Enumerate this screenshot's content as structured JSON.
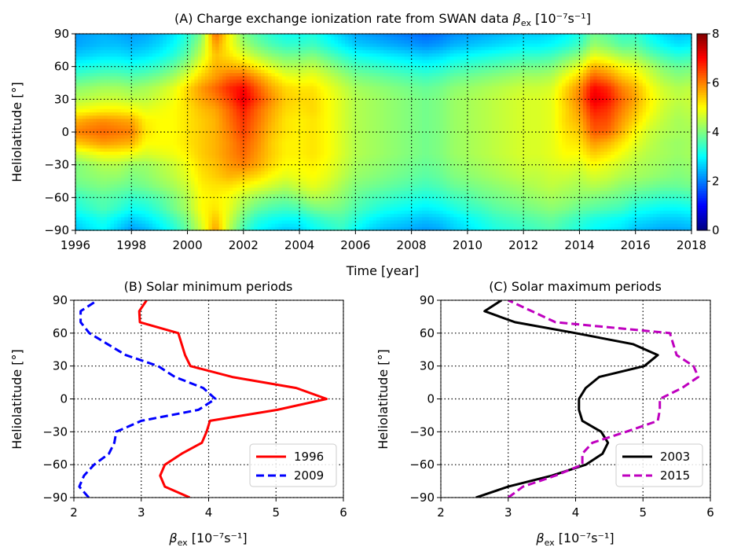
{
  "chart_data": [
    {
      "panel": "A",
      "type": "heatmap",
      "title": "(A) Charge exchange ionization rate from SWAN data",
      "title_symbol": "β",
      "title_symbol_sub": "ex",
      "title_unit": "[10⁻⁷s⁻¹]",
      "xlabel": "Time [year]",
      "ylabel": "Heliolatitude [°]",
      "xlim": [
        1996,
        2018
      ],
      "ylim": [
        -90,
        90
      ],
      "xticks": [
        "1996",
        "1998",
        "2000",
        "2002",
        "2004",
        "2006",
        "2008",
        "2010",
        "2012",
        "2014",
        "2016",
        "2018"
      ],
      "yticks": [
        "−90",
        "−60",
        "−30",
        "0",
        "30",
        "60",
        "90"
      ],
      "colorbar": {
        "min": 0,
        "max": 8,
        "ticks": [
          "0",
          "2",
          "4",
          "6",
          "8"
        ],
        "colormap": "jet"
      },
      "grid": true,
      "latitudes": [
        -90,
        -80,
        -70,
        -60,
        -50,
        -40,
        -30,
        -20,
        -10,
        0,
        10,
        20,
        30,
        40,
        50,
        60,
        70,
        80,
        90
      ],
      "years": [
        1996.0,
        1996.5,
        1997.0,
        1997.5,
        1998.0,
        1998.5,
        1999.0,
        1999.5,
        2000.0,
        2000.5,
        2001.0,
        2001.5,
        2002.0,
        2002.5,
        2003.0,
        2003.5,
        2004.0,
        2004.5,
        2005.0,
        2005.5,
        2006.0,
        2006.5,
        2007.0,
        2007.5,
        2008.0,
        2008.5,
        2009.0,
        2009.5,
        2010.0,
        2010.5,
        2011.0,
        2011.5,
        2012.0,
        2012.5,
        2013.0,
        2013.5,
        2014.0,
        2014.5,
        2015.0,
        2015.5,
        2016.0,
        2016.5,
        2017.0,
        2017.5,
        2018.0
      ],
      "values_by_latitude": [
        [
          2.5,
          2.8,
          3.0,
          2.6,
          2.2,
          2.4,
          2.8,
          3.2,
          3.8,
          4.6,
          5.8,
          4.4,
          3.5,
          3.0,
          2.8,
          2.6,
          2.7,
          3.0,
          3.2,
          3.4,
          3.0,
          2.7,
          2.5,
          2.4,
          2.3,
          2.2,
          2.3,
          2.6,
          2.8,
          3.0,
          3.2,
          3.3,
          3.4,
          3.5,
          3.6,
          3.4,
          3.2,
          3.0,
          2.9,
          2.8,
          2.5,
          2.4,
          2.3,
          2.3,
          2.4
        ],
        [
          2.8,
          3.0,
          3.2,
          2.9,
          2.6,
          2.8,
          3.1,
          3.5,
          4.0,
          4.8,
          5.5,
          4.6,
          3.8,
          3.3,
          3.1,
          3.0,
          3.0,
          3.3,
          3.5,
          3.6,
          3.3,
          3.0,
          2.8,
          2.7,
          2.6,
          2.5,
          2.6,
          2.8,
          3.0,
          3.2,
          3.4,
          3.5,
          3.6,
          3.7,
          3.8,
          3.6,
          3.4,
          3.2,
          3.1,
          3.0,
          2.8,
          2.7,
          2.6,
          2.6,
          2.7
        ],
        [
          3.2,
          3.4,
          3.6,
          3.4,
          3.1,
          3.2,
          3.5,
          3.9,
          4.3,
          5.0,
          5.2,
          4.8,
          4.2,
          3.8,
          3.6,
          3.5,
          3.6,
          3.9,
          4.0,
          3.9,
          3.6,
          3.4,
          3.2,
          3.1,
          3.0,
          2.9,
          3.0,
          3.2,
          3.4,
          3.5,
          3.7,
          3.8,
          3.9,
          4.0,
          4.1,
          4.0,
          3.8,
          3.7,
          3.6,
          3.5,
          3.2,
          3.1,
          3.0,
          3.0,
          3.1
        ],
        [
          3.4,
          3.6,
          3.7,
          3.6,
          3.4,
          3.5,
          3.7,
          4.0,
          4.4,
          5.0,
          5.1,
          4.9,
          4.5,
          4.2,
          4.0,
          3.9,
          4.1,
          4.4,
          4.3,
          4.1,
          3.8,
          3.6,
          3.5,
          3.4,
          3.3,
          3.2,
          3.3,
          3.5,
          3.6,
          3.8,
          3.9,
          4.0,
          4.1,
          4.2,
          4.3,
          4.2,
          4.1,
          4.0,
          3.9,
          3.8,
          3.6,
          3.5,
          3.4,
          3.4,
          3.5
        ],
        [
          3.8,
          3.9,
          4.0,
          3.9,
          3.8,
          3.9,
          4.1,
          4.3,
          4.6,
          5.1,
          5.2,
          5.2,
          5.0,
          4.8,
          4.6,
          4.4,
          4.6,
          4.8,
          4.6,
          4.3,
          4.0,
          3.9,
          3.8,
          3.7,
          3.6,
          3.5,
          3.6,
          3.8,
          3.9,
          4.0,
          4.1,
          4.2,
          4.3,
          4.4,
          4.5,
          4.4,
          4.3,
          4.4,
          4.3,
          4.1,
          4.0,
          3.9,
          3.8,
          3.8,
          3.9
        ],
        [
          4.0,
          4.1,
          4.2,
          4.2,
          4.0,
          4.1,
          4.3,
          4.5,
          4.8,
          5.2,
          5.4,
          5.6,
          5.5,
          5.3,
          5.0,
          4.8,
          4.9,
          5.0,
          4.8,
          4.5,
          4.2,
          4.1,
          4.0,
          3.9,
          3.8,
          3.7,
          3.8,
          4.0,
          4.1,
          4.2,
          4.3,
          4.4,
          4.5,
          4.5,
          4.6,
          4.6,
          4.5,
          4.7,
          4.6,
          4.4,
          4.3,
          4.2,
          4.1,
          4.0,
          4.1
        ],
        [
          4.0,
          4.2,
          4.4,
          4.4,
          4.2,
          4.2,
          4.4,
          4.6,
          4.9,
          5.3,
          5.5,
          5.8,
          6.0,
          5.7,
          5.3,
          5.0,
          5.0,
          5.1,
          4.9,
          4.6,
          4.3,
          4.2,
          4.1,
          4.0,
          3.9,
          3.8,
          3.9,
          4.1,
          4.2,
          4.3,
          4.4,
          4.5,
          4.6,
          4.6,
          4.7,
          4.8,
          4.7,
          5.0,
          4.8,
          4.6,
          4.4,
          4.3,
          4.2,
          4.1,
          4.2
        ],
        [
          4.6,
          4.8,
          5.0,
          5.0,
          4.9,
          4.7,
          4.8,
          4.9,
          5.1,
          5.4,
          5.6,
          5.9,
          6.2,
          5.8,
          5.4,
          5.1,
          5.1,
          5.2,
          5.0,
          4.7,
          4.4,
          4.3,
          4.2,
          4.1,
          4.0,
          3.9,
          4.0,
          4.2,
          4.3,
          4.4,
          4.5,
          4.6,
          4.7,
          4.7,
          4.8,
          5.0,
          5.0,
          5.4,
          5.2,
          4.9,
          4.6,
          4.4,
          4.3,
          4.2,
          4.3
        ],
        [
          5.4,
          5.6,
          5.8,
          5.7,
          5.6,
          5.0,
          5.0,
          5.0,
          5.2,
          5.4,
          5.6,
          5.9,
          6.3,
          5.9,
          5.4,
          5.1,
          5.1,
          5.2,
          5.0,
          4.7,
          4.4,
          4.3,
          4.2,
          4.1,
          4.0,
          3.9,
          4.0,
          4.2,
          4.3,
          4.4,
          4.5,
          4.6,
          4.7,
          4.7,
          4.8,
          5.1,
          5.2,
          5.8,
          5.6,
          5.2,
          4.8,
          4.5,
          4.3,
          4.2,
          4.3
        ],
        [
          6.0,
          6.1,
          6.2,
          6.1,
          6.0,
          5.2,
          5.0,
          5.0,
          5.2,
          5.4,
          5.6,
          6.0,
          6.5,
          6.0,
          5.5,
          5.2,
          5.1,
          5.2,
          5.0,
          4.7,
          4.4,
          4.3,
          4.2,
          4.1,
          4.0,
          3.9,
          4.0,
          4.2,
          4.3,
          4.4,
          4.5,
          4.6,
          4.7,
          4.7,
          4.8,
          5.2,
          5.4,
          6.3,
          6.2,
          5.6,
          5.0,
          4.6,
          4.4,
          4.3,
          4.3
        ],
        [
          5.6,
          5.8,
          5.9,
          5.8,
          5.7,
          5.1,
          5.0,
          5.0,
          5.2,
          5.4,
          5.6,
          6.1,
          6.6,
          6.1,
          5.6,
          5.2,
          5.1,
          5.2,
          5.0,
          4.7,
          4.4,
          4.3,
          4.2,
          4.1,
          4.0,
          3.9,
          4.0,
          4.2,
          4.3,
          4.4,
          4.5,
          4.6,
          4.7,
          4.7,
          4.8,
          5.3,
          5.6,
          6.5,
          6.4,
          5.8,
          5.3,
          4.8,
          4.5,
          4.3,
          4.4
        ],
        [
          4.9,
          5.0,
          5.1,
          5.1,
          5.0,
          4.8,
          4.9,
          5.0,
          5.2,
          5.5,
          5.7,
          6.2,
          6.8,
          6.2,
          5.7,
          5.3,
          5.2,
          5.3,
          5.0,
          4.7,
          4.4,
          4.3,
          4.2,
          4.1,
          4.0,
          3.9,
          4.0,
          4.2,
          4.3,
          4.4,
          4.5,
          4.6,
          4.7,
          4.7,
          4.8,
          5.3,
          5.8,
          6.8,
          6.6,
          6.0,
          5.5,
          5.0,
          4.6,
          4.4,
          4.5
        ],
        [
          4.4,
          4.5,
          4.6,
          4.6,
          4.5,
          4.5,
          4.7,
          4.9,
          5.3,
          5.7,
          6.0,
          6.5,
          7.2,
          6.5,
          5.9,
          5.4,
          5.3,
          5.3,
          5.0,
          4.7,
          4.4,
          4.3,
          4.2,
          4.1,
          4.0,
          3.9,
          4.0,
          4.2,
          4.3,
          4.4,
          4.5,
          4.6,
          4.7,
          4.7,
          4.8,
          5.4,
          6.0,
          7.2,
          6.9,
          6.2,
          5.7,
          5.1,
          4.7,
          4.5,
          4.6
        ],
        [
          4.1,
          4.2,
          4.3,
          4.3,
          4.2,
          4.3,
          4.5,
          4.8,
          5.3,
          5.8,
          6.2,
          6.7,
          7.0,
          6.3,
          5.7,
          5.3,
          5.2,
          5.2,
          4.9,
          4.6,
          4.3,
          4.2,
          4.1,
          4.0,
          3.9,
          3.8,
          3.9,
          4.1,
          4.2,
          4.3,
          4.4,
          4.5,
          4.6,
          4.6,
          4.7,
          5.3,
          5.9,
          7.0,
          6.7,
          6.0,
          5.6,
          5.0,
          4.6,
          4.4,
          4.5
        ],
        [
          3.6,
          3.7,
          3.8,
          3.8,
          3.7,
          3.8,
          4.0,
          4.3,
          4.8,
          5.4,
          5.8,
          6.2,
          6.3,
          5.8,
          5.3,
          4.9,
          4.8,
          4.9,
          4.6,
          4.3,
          4.0,
          3.9,
          3.8,
          3.7,
          3.6,
          3.5,
          3.6,
          3.8,
          3.9,
          4.0,
          4.1,
          4.2,
          4.3,
          4.3,
          4.4,
          4.9,
          5.4,
          6.3,
          6.0,
          5.5,
          5.2,
          4.7,
          4.3,
          4.1,
          4.2
        ],
        [
          3.1,
          3.2,
          3.3,
          3.3,
          3.2,
          3.3,
          3.5,
          3.8,
          4.3,
          5.0,
          5.6,
          5.6,
          5.5,
          5.1,
          4.7,
          4.4,
          4.4,
          4.5,
          4.2,
          3.9,
          3.6,
          3.5,
          3.4,
          3.3,
          3.2,
          3.1,
          3.2,
          3.4,
          3.5,
          3.6,
          3.7,
          3.8,
          3.9,
          3.9,
          4.0,
          4.4,
          4.8,
          5.6,
          5.4,
          5.0,
          4.8,
          4.4,
          4.0,
          3.8,
          3.9
        ],
        [
          2.6,
          2.7,
          2.8,
          2.8,
          2.7,
          2.8,
          3.0,
          3.3,
          3.8,
          4.6,
          5.5,
          5.2,
          4.8,
          4.4,
          4.1,
          3.9,
          3.9,
          4.0,
          3.7,
          3.4,
          3.1,
          3.0,
          2.9,
          2.8,
          2.7,
          2.6,
          2.7,
          2.9,
          3.0,
          3.1,
          3.2,
          3.3,
          3.4,
          3.4,
          3.5,
          3.8,
          4.1,
          4.8,
          4.6,
          4.3,
          4.2,
          3.8,
          3.5,
          3.3,
          3.4
        ],
        [
          2.3,
          2.4,
          2.5,
          2.5,
          2.4,
          2.5,
          2.7,
          3.0,
          3.5,
          4.3,
          5.8,
          5.0,
          4.3,
          3.9,
          3.6,
          3.4,
          3.4,
          3.5,
          3.2,
          2.9,
          2.6,
          2.5,
          2.4,
          2.3,
          2.2,
          2.1,
          2.2,
          2.4,
          2.5,
          2.6,
          2.7,
          2.8,
          2.9,
          2.9,
          3.0,
          3.2,
          3.5,
          4.2,
          4.0,
          3.7,
          3.7,
          3.3,
          3.0,
          2.8,
          2.9
        ],
        [
          2.2,
          2.3,
          2.4,
          2.3,
          2.2,
          2.3,
          2.5,
          2.8,
          3.3,
          4.0,
          6.2,
          5.0,
          4.0,
          3.6,
          3.3,
          3.1,
          3.1,
          3.2,
          2.9,
          2.6,
          2.3,
          2.2,
          2.1,
          2.0,
          1.9,
          1.8,
          1.9,
          2.1,
          2.2,
          2.3,
          2.4,
          2.5,
          2.6,
          2.6,
          2.7,
          2.9,
          3.2,
          3.9,
          3.7,
          3.4,
          3.4,
          3.0,
          2.7,
          2.5,
          2.6
        ]
      ]
    },
    {
      "panel": "B",
      "type": "line",
      "title": "(B) Solar minimum periods",
      "xlabel_symbol": "β",
      "xlabel_symbol_sub": "ex",
      "xlabel_unit": "[10⁻⁷s⁻¹]",
      "ylabel": "Heliolatitude [°]",
      "xlim": [
        2,
        6
      ],
      "ylim": [
        -90,
        90
      ],
      "xticks": [
        "2",
        "3",
        "4",
        "5",
        "6"
      ],
      "yticks": [
        "−90",
        "−60",
        "−30",
        "0",
        "30",
        "60",
        "90"
      ],
      "grid": true,
      "legend": "bottom-right",
      "y": [
        -90,
        -80,
        -70,
        -60,
        -50,
        -40,
        -30,
        -20,
        -10,
        0,
        10,
        20,
        30,
        40,
        50,
        60,
        70,
        80,
        90
      ],
      "series": [
        {
          "name": "1996",
          "color": "#ff0000",
          "dash": "solid",
          "values": [
            3.72,
            3.35,
            3.28,
            3.35,
            3.6,
            3.9,
            3.97,
            4.02,
            5.02,
            5.75,
            5.3,
            4.35,
            3.73,
            3.65,
            3.6,
            3.55,
            2.98,
            2.97,
            3.08
          ]
        },
        {
          "name": "2009",
          "color": "#0000ff",
          "dash": "dashed",
          "values": [
            2.22,
            2.08,
            2.15,
            2.3,
            2.52,
            2.6,
            2.63,
            3.0,
            3.85,
            4.1,
            3.92,
            3.5,
            3.25,
            2.77,
            2.5,
            2.23,
            2.1,
            2.1,
            2.35
          ]
        }
      ]
    },
    {
      "panel": "C",
      "type": "line",
      "title": "(C) Solar maximum periods",
      "xlabel_symbol": "β",
      "xlabel_symbol_sub": "ex",
      "xlabel_unit": "[10⁻⁷s⁻¹]",
      "ylabel": "Heliolatitude [°]",
      "xlim": [
        2,
        6
      ],
      "ylim": [
        -90,
        90
      ],
      "xticks": [
        "2",
        "3",
        "4",
        "5",
        "6"
      ],
      "yticks": [
        "−90",
        "−60",
        "−30",
        "0",
        "30",
        "60",
        "90"
      ],
      "grid": true,
      "legend": "bottom-right",
      "y": [
        -90,
        -80,
        -70,
        -60,
        -50,
        -40,
        -30,
        -20,
        -10,
        0,
        10,
        20,
        30,
        40,
        50,
        60,
        70,
        80,
        90
      ],
      "series": [
        {
          "name": "2003",
          "color": "#000000",
          "dash": "solid",
          "values": [
            2.52,
            3.0,
            3.65,
            4.15,
            4.4,
            4.48,
            4.38,
            4.1,
            4.05,
            4.05,
            4.15,
            4.35,
            5.02,
            5.22,
            4.85,
            4.0,
            3.1,
            2.65,
            2.9
          ]
        },
        {
          "name": "2015",
          "color": "#bf00bf",
          "dash": "dashed",
          "values": [
            3.0,
            3.22,
            3.7,
            4.1,
            4.1,
            4.25,
            4.75,
            5.22,
            5.25,
            5.25,
            5.58,
            5.82,
            5.75,
            5.5,
            5.45,
            5.4,
            3.7,
            3.35,
            3.0
          ]
        }
      ]
    }
  ]
}
